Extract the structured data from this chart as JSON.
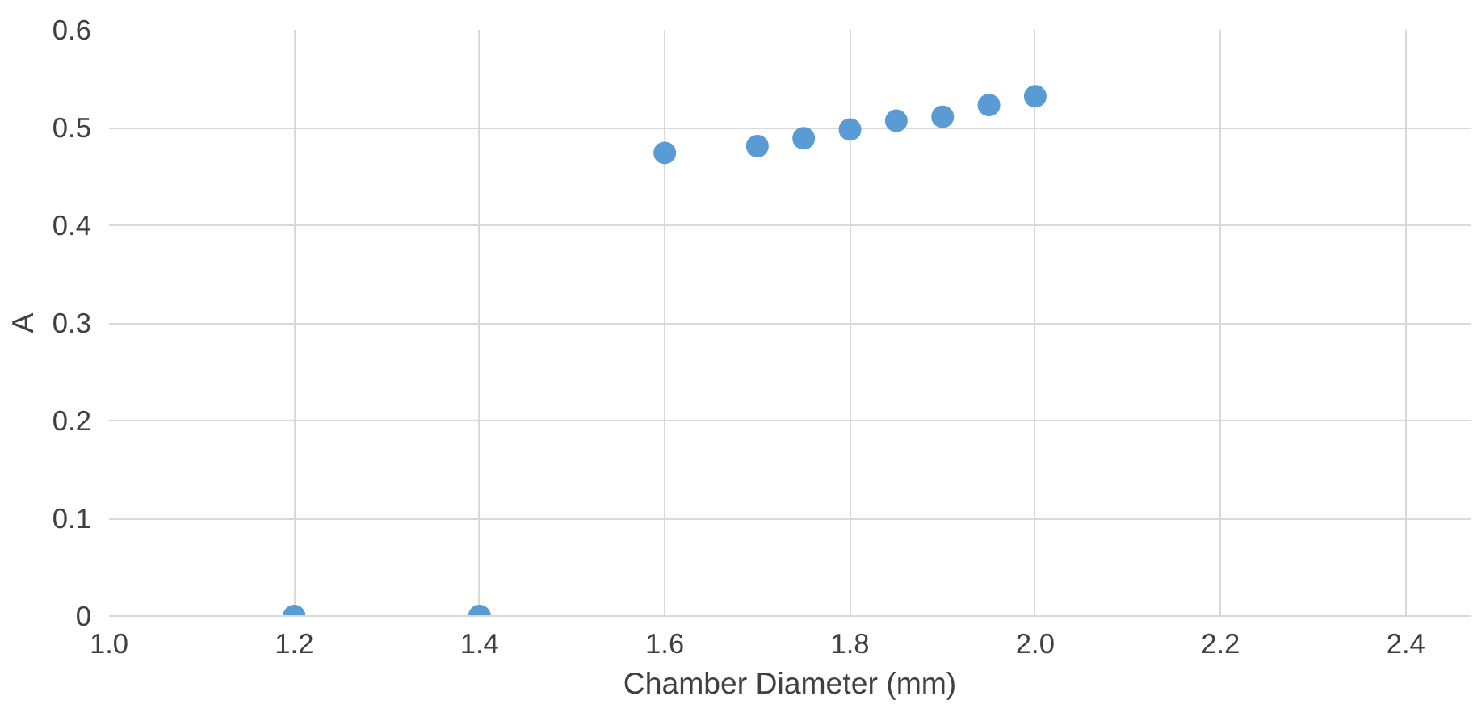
{
  "chart_data": {
    "type": "scatter",
    "xlabel": "Chamber Diameter (mm)",
    "ylabel": "A",
    "x": [
      1.2,
      1.4,
      1.6,
      1.7,
      1.75,
      1.8,
      1.85,
      1.9,
      1.95,
      2.0
    ],
    "series": [
      {
        "color": "#5b9bd5",
        "values": [
          0,
          0,
          0.474,
          0.481,
          0.489,
          0.498,
          0.507,
          0.511,
          0.523,
          0.532
        ]
      }
    ],
    "xlim": [
      1.0,
      2.47
    ],
    "ylim": [
      0,
      0.6
    ],
    "xticks": [
      {
        "value": 1.0,
        "label": "1.0"
      },
      1.2,
      1.4,
      1.6,
      1.8,
      {
        "value": 2.0,
        "label": "2.0"
      },
      2.2,
      2.4
    ],
    "yticks": [
      0,
      0.1,
      0.2,
      0.3,
      0.4,
      0.5,
      0.6
    ],
    "grid": true,
    "marker": "circle"
  }
}
